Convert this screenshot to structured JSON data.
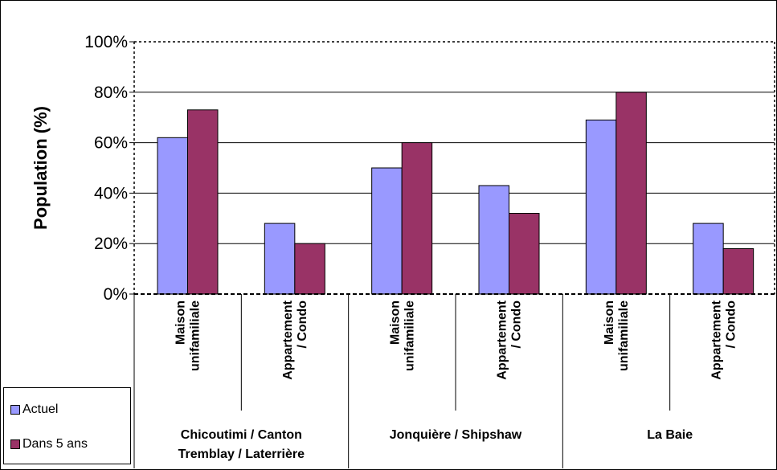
{
  "chart_data": {
    "type": "bar",
    "ylabel": "Population (%)",
    "ylim": [
      0,
      100
    ],
    "yticks": [
      "0%",
      "20%",
      "40%",
      "60%",
      "80%",
      "100%"
    ],
    "grid": true,
    "legend_position": "bottom-left",
    "groups": [
      {
        "label": "Chicoutimi / Canton\nTremblay / Laterrière",
        "categories": [
          "Maison\nunifamiliale",
          "Appartement\n/ Condo"
        ]
      },
      {
        "label": "Jonquière / Shipshaw",
        "categories": [
          "Maison\nunifamiliale",
          "Appartement\n/ Condo"
        ]
      },
      {
        "label": "La Baie",
        "categories": [
          "Maison\nunifamiliale",
          "Appartement\n/ Condo"
        ]
      }
    ],
    "series": [
      {
        "name": "Actuel",
        "color": "#9999ff",
        "values": [
          62,
          28,
          50,
          43,
          69,
          28
        ]
      },
      {
        "name": "Dans 5 ans",
        "color": "#993366",
        "values": [
          73,
          20,
          60,
          32,
          80,
          18
        ]
      }
    ]
  }
}
